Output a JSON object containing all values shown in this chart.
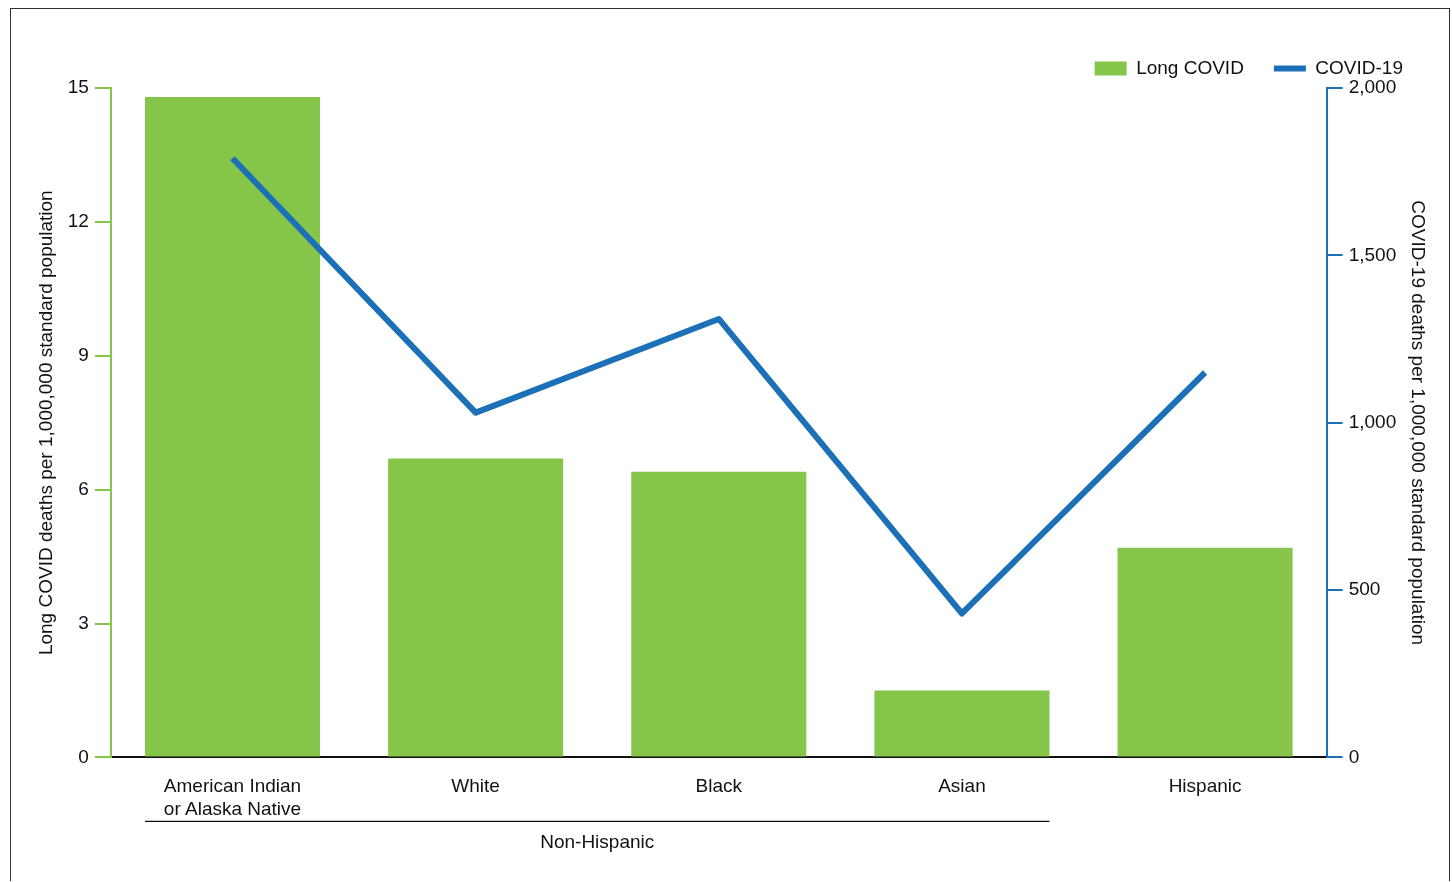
{
  "chart_data": {
    "type": "bar",
    "categories": [
      "American Indian or Alaska Native",
      "White",
      "Black",
      "Asian",
      "Hispanic"
    ],
    "series": [
      {
        "name": "Long COVID",
        "color": "#84c54a",
        "values": [
          14.8,
          6.7,
          6.4,
          1.5,
          4.7
        ]
      },
      {
        "name": "COVID-19",
        "type": "line",
        "axis": "y2",
        "color": "#1b70b8",
        "values": [
          1790,
          1030,
          1310,
          430,
          1150
        ]
      }
    ],
    "ylabel": "Long COVID deaths per 1,000,000 standard population",
    "y2label": "COVID-19 deaths per 1,000,000 standard population",
    "ylim": [
      0,
      15
    ],
    "yticks": [
      0,
      3,
      6,
      9,
      12,
      15
    ],
    "y2lim": [
      0,
      2000
    ],
    "y2ticks": [
      0,
      {
        "value": 500,
        "label": "500"
      },
      {
        "value": 1000,
        "label": "1,000"
      },
      {
        "value": 1500,
        "label": "1,500"
      },
      {
        "value": 2000,
        "label": "2,000"
      }
    ],
    "annotations": [
      "Non-Hispanic"
    ],
    "legend": "top right",
    "grid": false,
    "marker": "none"
  }
}
